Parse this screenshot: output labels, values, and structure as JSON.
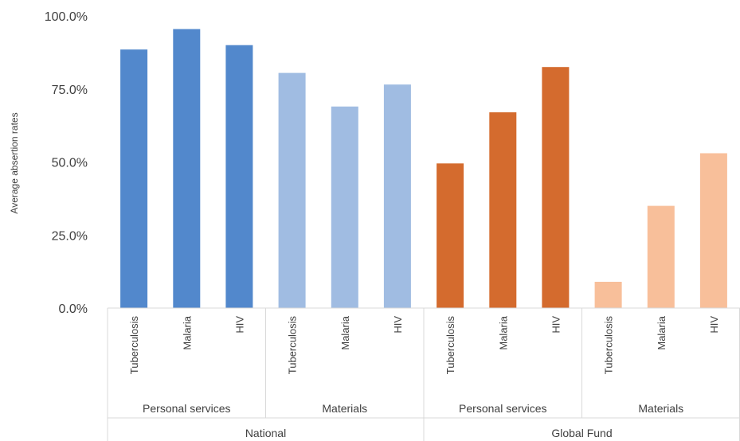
{
  "chart_data": {
    "type": "bar",
    "title": "",
    "ylabel": "Average absertion rates",
    "xlabel": "",
    "ylim": [
      0,
      100
    ],
    "yticks": [
      "0.0%",
      "25.0%",
      "50.0%",
      "75.0%",
      "100.0%"
    ],
    "ytick_values": [
      0,
      25,
      50,
      75,
      100
    ],
    "grid": false,
    "categories": [
      "Tuberculosis",
      "Malaria",
      "HIV",
      "Tuberculosis",
      "Malaria",
      "HIV",
      "Tuberculosis",
      "Malaria",
      "HIV",
      "Tuberculosis",
      "Malaria",
      "HIV"
    ],
    "values": [
      88.5,
      95.5,
      90.0,
      80.5,
      69.0,
      76.5,
      49.5,
      67.0,
      82.5,
      9.0,
      35.0,
      53.0
    ],
    "bar_colors": [
      "#5288cc",
      "#5288cc",
      "#5288cc",
      "#a0bce2",
      "#a0bce2",
      "#a0bce2",
      "#d46b2e",
      "#d46b2e",
      "#d46b2e",
      "#f8bf9a",
      "#f8bf9a",
      "#f8bf9a"
    ],
    "subgroups": [
      {
        "label": "Personal services",
        "start": 0,
        "count": 3
      },
      {
        "label": "Materials",
        "start": 3,
        "count": 3
      },
      {
        "label": "Personal services",
        "start": 6,
        "count": 3
      },
      {
        "label": "Materials",
        "start": 9,
        "count": 3
      }
    ],
    "groups": [
      {
        "label": "National",
        "start": 0,
        "count": 6
      },
      {
        "label": "Global Fund",
        "start": 6,
        "count": 6
      }
    ]
  }
}
